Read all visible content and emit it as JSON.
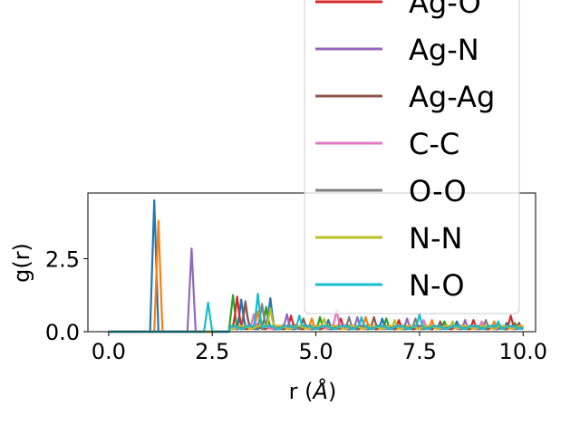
{
  "chart_data": {
    "type": "line",
    "title": "",
    "xlabel": "r (",
    "xlabel_unit": "Å",
    "xlabel_close": ")",
    "ylabel": "g(r)",
    "xlim": [
      -0.5,
      10.3
    ],
    "ylim": [
      0,
      4.75
    ],
    "xticks": [
      0.0,
      2.5,
      5.0,
      7.5,
      10.0
    ],
    "xtick_labels": [
      "0.0",
      "2.5",
      "5.0",
      "7.5",
      "10.0"
    ],
    "yticks": [
      0.0,
      2.5
    ],
    "ytick_labels": [
      "0.0",
      "2.5"
    ],
    "grid": false,
    "legend_placement": "upper-right",
    "series": [
      {
        "name": "",
        "color": "#1f77b4",
        "peaks": [
          [
            1.1,
            4.5
          ],
          [
            3.2,
            1.1
          ],
          [
            3.9,
            1.15
          ],
          [
            5.3,
            0.4
          ],
          [
            6.6,
            0.45
          ],
          [
            8.4,
            0.35
          ],
          [
            9.6,
            0.3
          ]
        ]
      },
      {
        "name": "",
        "color": "#ff7f0e",
        "peaks": [
          [
            1.2,
            3.8
          ],
          [
            3.6,
            0.7
          ],
          [
            4.9,
            0.45
          ],
          [
            6.2,
            0.5
          ],
          [
            7.8,
            0.4
          ],
          [
            9.3,
            0.35
          ]
        ]
      },
      {
        "name": "",
        "color": "#2ca02c",
        "peaks": [
          [
            3.0,
            1.25
          ],
          [
            3.8,
            0.85
          ],
          [
            5.1,
            0.5
          ],
          [
            6.7,
            0.45
          ],
          [
            8.1,
            0.35
          ],
          [
            9.8,
            0.3
          ]
        ]
      },
      {
        "name": "Ag-O",
        "color": "#d62728",
        "peaks": [
          [
            3.1,
            1.2
          ],
          [
            4.4,
            0.55
          ],
          [
            5.6,
            0.45
          ],
          [
            7.0,
            0.4
          ],
          [
            8.8,
            0.4
          ],
          [
            9.7,
            0.55
          ]
        ]
      },
      {
        "name": "Ag-N",
        "color": "#9467bd",
        "peaks": [
          [
            2.0,
            2.85
          ],
          [
            3.3,
            1.05
          ],
          [
            4.3,
            0.6
          ],
          [
            6.0,
            0.5
          ],
          [
            7.2,
            0.45
          ],
          [
            8.6,
            0.4
          ]
        ]
      },
      {
        "name": "Ag-Ag",
        "color": "#8c564b",
        "peaks": [
          [
            3.3,
            1.0
          ],
          [
            4.7,
            0.45
          ],
          [
            6.4,
            0.5
          ],
          [
            8.0,
            0.35
          ],
          [
            9.9,
            0.3
          ]
        ]
      },
      {
        "name": "C-C",
        "color": "#e377c2",
        "peaks": [
          [
            3.5,
            0.6
          ],
          [
            5.5,
            0.75
          ],
          [
            7.6,
            0.4
          ],
          [
            9.0,
            0.35
          ]
        ]
      },
      {
        "name": "O-O",
        "color": "#7f7f7f",
        "peaks": [
          [
            3.7,
            0.95
          ],
          [
            5.8,
            0.5
          ],
          [
            7.4,
            0.45
          ],
          [
            9.1,
            0.4
          ]
        ]
      },
      {
        "name": "N-N",
        "color": "#bcbd22",
        "peaks": [
          [
            3.9,
            0.8
          ],
          [
            5.2,
            0.45
          ],
          [
            6.9,
            0.4
          ],
          [
            8.3,
            0.35
          ]
        ]
      },
      {
        "name": "N-O",
        "color": "#17becf",
        "peaks": [
          [
            2.4,
            1.0
          ],
          [
            3.6,
            1.3
          ],
          [
            4.6,
            0.55
          ],
          [
            6.1,
            0.5
          ],
          [
            7.5,
            0.6
          ],
          [
            9.4,
            0.35
          ]
        ]
      }
    ]
  },
  "legend": {
    "entries": [
      {
        "label": "Ag-O",
        "color": "#d62728"
      },
      {
        "label": "Ag-N",
        "color": "#9467bd"
      },
      {
        "label": "Ag-Ag",
        "color": "#8c564b"
      },
      {
        "label": "C-C",
        "color": "#e377c2"
      },
      {
        "label": "O-O",
        "color": "#7f7f7f"
      },
      {
        "label": "N-N",
        "color": "#bcbd22"
      },
      {
        "label": "N-O",
        "color": "#17becf"
      }
    ]
  }
}
